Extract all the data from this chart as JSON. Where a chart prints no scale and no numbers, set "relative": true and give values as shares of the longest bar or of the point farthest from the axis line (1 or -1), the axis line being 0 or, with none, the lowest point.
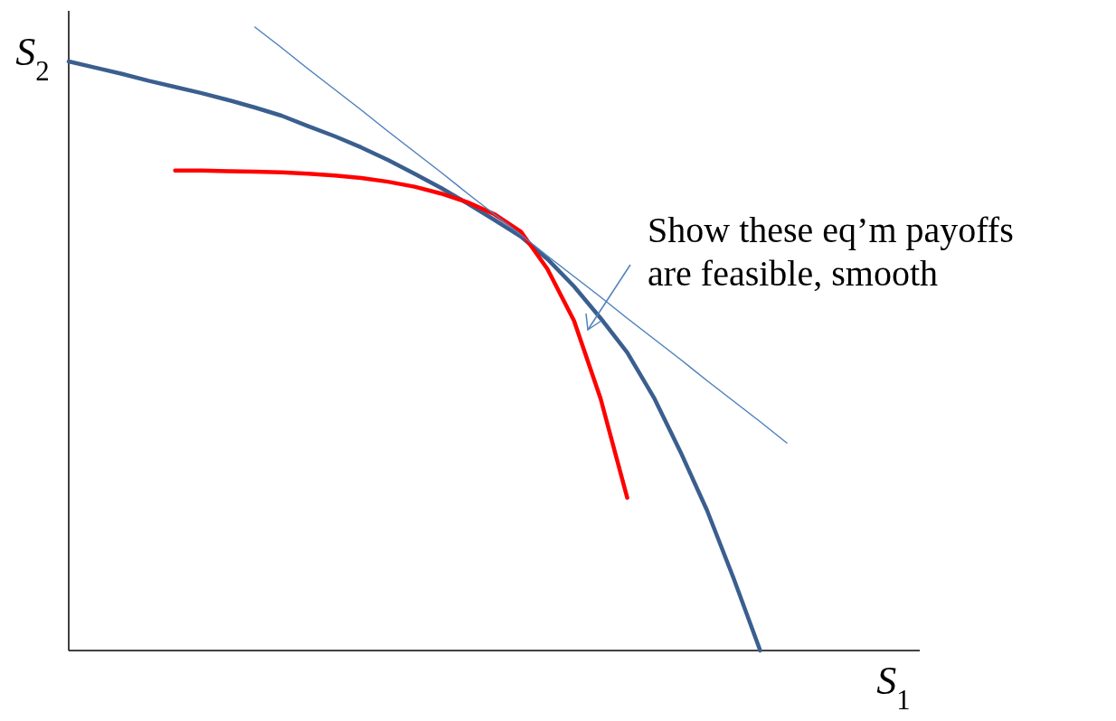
{
  "chart_data": {
    "type": "line",
    "relative": true,
    "xlabel": "S$_{1}$",
    "ylabel": "S$_{2}$",
    "categories": [
      null,
      null,
      null,
      null,
      null,
      null,
      null,
      null,
      null,
      null,
      null,
      null,
      null,
      null,
      null,
      null,
      null,
      null,
      null,
      null,
      null,
      null,
      null,
      null,
      null,
      null,
      null,
      null,
      null,
      null,
      null,
      null,
      null
    ],
    "series": [
      {
        "color": "#3a5f8f",
        "values": [
          0.945,
          0.935,
          0.925,
          0.914,
          0.904,
          0.894,
          0.883,
          0.871,
          0.858,
          0.841,
          0.825,
          0.807,
          0.787,
          0.765,
          0.742,
          0.717,
          0.691,
          0.664,
          0.628,
          0.584,
          0.533,
          0.478,
          0.406,
          0.319,
          0.225,
          0.116,
          0,
          null,
          null,
          null,
          null,
          null,
          null
        ]
      },
      {
        "color": "#ff0000",
        "values": [
          null,
          null,
          null,
          null,
          0.77,
          0.77,
          0.769,
          0.768,
          0.767,
          0.765,
          0.762,
          0.758,
          0.752,
          0.744,
          0.733,
          0.719,
          0.7,
          0.672,
          0.612,
          0.529,
          0.404,
          0.245,
          null,
          null,
          null,
          null,
          null,
          null,
          null,
          null,
          null,
          null,
          null
        ]
      },
      {
        "color": "#4f81bd",
        "values": [
          null,
          null,
          null,
          null,
          null,
          null,
          null,
          1,
          0.967,
          0.933,
          0.9,
          0.867,
          0.833,
          0.8,
          0.767,
          0.733,
          0.7,
          0.667,
          0.633,
          0.6,
          0.567,
          0.533,
          0.5,
          0.467,
          0.433,
          0.4,
          0.367,
          0.333,
          null,
          null,
          null,
          null,
          null
        ]
      }
    ],
    "annotations": [
      "Show these eq’m payoffs are feasible, smooth"
    ]
  }
}
